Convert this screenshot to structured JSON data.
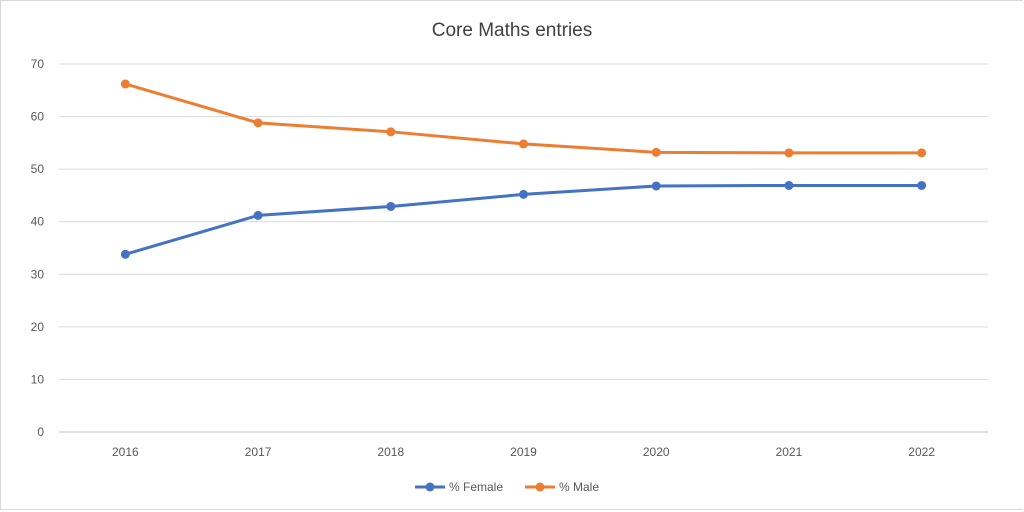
{
  "chart_data": {
    "type": "line",
    "title": "Core Maths entries",
    "xlabel": "",
    "ylabel": "",
    "categories": [
      "2016",
      "2017",
      "2018",
      "2019",
      "2020",
      "2021",
      "2022"
    ],
    "ylim": [
      0,
      70
    ],
    "yticks": [
      0,
      10,
      20,
      30,
      40,
      50,
      60,
      70
    ],
    "grid": true,
    "legend_position": "bottom",
    "series": [
      {
        "name": "% Female",
        "color": "#4472c4",
        "values": [
          33.8,
          41.2,
          42.9,
          45.2,
          46.8,
          46.9,
          46.9
        ]
      },
      {
        "name": "% Male",
        "color": "#ed7d31",
        "values": [
          66.2,
          58.8,
          57.1,
          54.8,
          53.2,
          53.1,
          53.1
        ]
      }
    ]
  }
}
